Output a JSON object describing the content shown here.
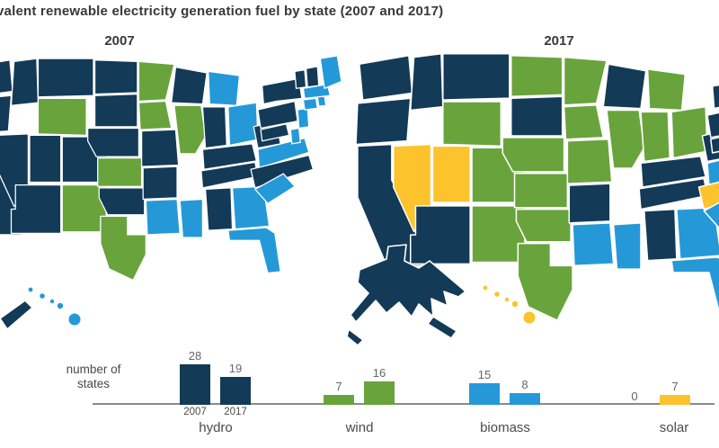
{
  "header": {
    "title": "valent renewable electricity generation fuel by state (2007 and 2017)"
  },
  "maps": {
    "fuel_colors": {
      "hydro": "#133a57",
      "wind": "#69a33c",
      "biomass": "#2599d8",
      "solar": "#fdc32d"
    },
    "left": {
      "year_label": "2007",
      "states": {
        "WA": "hydro",
        "OR": "hydro",
        "CA": "hydro",
        "ID": "hydro",
        "NV": "hydro",
        "UT": "hydro",
        "AZ": "hydro",
        "MT": "hydro",
        "WY": "wind",
        "CO": "hydro",
        "NM": "wind",
        "ND": "hydro",
        "SD": "hydro",
        "NE": "hydro",
        "KS": "wind",
        "OK": "hydro",
        "TX": "wind",
        "MN": "wind",
        "IA": "wind",
        "MO": "hydro",
        "AR": "hydro",
        "LA": "biomass",
        "WI": "hydro",
        "IL": "wind",
        "MS": "biomass",
        "MI": "biomass",
        "IN": "hydro",
        "OH": "biomass",
        "KY": "hydro",
        "TN": "hydro",
        "AL": "hydro",
        "GA": "biomass",
        "FL": "biomass",
        "WV": "hydro",
        "VA": "biomass",
        "NC": "hydro",
        "SC": "biomass",
        "PA": "hydro",
        "NY": "hydro",
        "MD": "hydro",
        "DE": "biomass",
        "NJ": "biomass",
        "CT": "biomass",
        "RI": "biomass",
        "MA": "biomass",
        "VT": "hydro",
        "NH": "hydro",
        "ME": "biomass",
        "AK": "hydro",
        "HI": "biomass"
      }
    },
    "right": {
      "year_label": "2017",
      "states": {
        "WA": "hydro",
        "OR": "hydro",
        "CA": "hydro",
        "ID": "hydro",
        "NV": "solar",
        "UT": "solar",
        "AZ": "hydro",
        "MT": "hydro",
        "WY": "wind",
        "CO": "wind",
        "NM": "wind",
        "ND": "wind",
        "SD": "hydro",
        "NE": "wind",
        "KS": "wind",
        "OK": "wind",
        "TX": "wind",
        "MN": "wind",
        "IA": "wind",
        "MO": "wind",
        "AR": "hydro",
        "LA": "biomass",
        "WI": "hydro",
        "IL": "wind",
        "MS": "biomass",
        "MI": "wind",
        "IN": "wind",
        "OH": "wind",
        "KY": "hydro",
        "TN": "hydro",
        "AL": "hydro",
        "GA": "biomass",
        "FL": "biomass",
        "WV": "hydro",
        "VA": "biomass",
        "NC": "solar",
        "SC": "biomass",
        "PA": "hydro",
        "NY": "hydro",
        "MD": "hydro",
        "DE": "solar",
        "NJ": "solar",
        "CT": "biomass",
        "RI": "wind",
        "MA": "solar",
        "VT": "hydro",
        "NH": "hydro",
        "ME": "biomass",
        "AK": "hydro",
        "HI": "solar"
      }
    }
  },
  "chart_data": {
    "type": "bar",
    "categories": [
      "hydro",
      "wind",
      "biomass",
      "solar"
    ],
    "series": [
      {
        "name": "2007",
        "values": [
          28,
          7,
          15,
          0
        ]
      },
      {
        "name": "2017",
        "values": [
          19,
          16,
          8,
          7
        ]
      }
    ],
    "ylabel": "number of states",
    "xlabel": "",
    "ylim": [
      0,
      30
    ],
    "grid": false,
    "legend_position": "none",
    "bar_colors_by_category": {
      "hydro": "#133a57",
      "wind": "#69a33c",
      "biomass": "#2599d8",
      "solar": "#fdc32d"
    }
  }
}
